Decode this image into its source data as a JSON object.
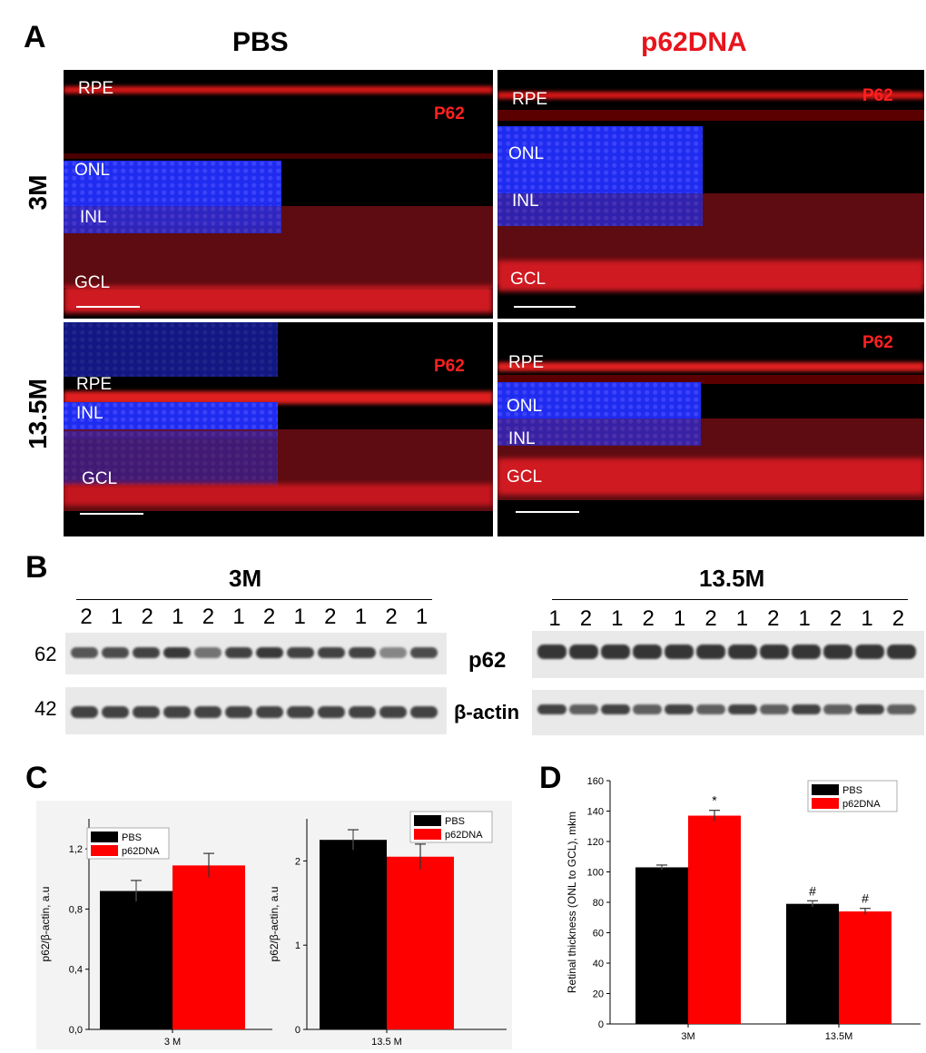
{
  "panels": {
    "a": "A",
    "b": "B",
    "c": "C",
    "d": "D"
  },
  "panel_a": {
    "col_pbs": "PBS",
    "col_p62dna": "p62DNA",
    "row_3m": "3M",
    "row_13m": "13.5M",
    "colors": {
      "pbs": "#000000",
      "p62dna": "#e8141b"
    },
    "images": [
      {
        "labels": [
          "RPE",
          "ONL",
          "INL",
          "GCL"
        ],
        "stain": "P62"
      },
      {
        "labels": [
          "RPE",
          "ONL",
          "INL",
          "GCL"
        ],
        "stain": "P62"
      },
      {
        "labels": [
          "RPE",
          "INL",
          "GCL"
        ],
        "stain": "P62"
      },
      {
        "labels": [
          "RPE",
          "ONL",
          "INL",
          "GCL"
        ],
        "stain": "P62"
      }
    ]
  },
  "panel_b": {
    "group_3m": "3M",
    "group_13m": "13.5M",
    "lanes_3m": [
      "2",
      "1",
      "2",
      "1",
      "2",
      "1",
      "2",
      "1",
      "2",
      "1",
      "2",
      "1"
    ],
    "lanes_13m": [
      "1",
      "2",
      "1",
      "2",
      "1",
      "2",
      "1",
      "2",
      "1",
      "2",
      "1",
      "2"
    ],
    "mw_62": "62",
    "mw_42": "42",
    "label_p62": "p62",
    "label_actin": "β-actin"
  },
  "chart_data": [
    {
      "type": "bar",
      "panel": "C",
      "categories": [
        "3 M"
      ],
      "series": [
        {
          "name": "PBS",
          "values": [
            0.92
          ],
          "errors": [
            0.07
          ],
          "color": "#000000"
        },
        {
          "name": "p62DNA",
          "values": [
            1.09
          ],
          "errors": [
            0.08
          ],
          "color": "#ff0000"
        }
      ],
      "ylabel": "p62/β-actin, a.u",
      "ylim": [
        0,
        1.4
      ],
      "yticks": [
        "0,0",
        "0,4",
        "0,8",
        "1,2"
      ],
      "legend": "top-left"
    },
    {
      "type": "bar",
      "panel": "C",
      "categories": [
        "13.5 M"
      ],
      "series": [
        {
          "name": "PBS",
          "values": [
            2.25
          ],
          "errors": [
            0.12
          ],
          "color": "#000000"
        },
        {
          "name": "p62DNA",
          "values": [
            2.05
          ],
          "errors": [
            0.15
          ],
          "color": "#ff0000"
        }
      ],
      "ylabel": "p62/β-actin, a.u",
      "ylim": [
        0,
        2.5
      ],
      "yticks": [
        "0",
        "1",
        "2"
      ],
      "legend": "top-right"
    },
    {
      "type": "bar",
      "panel": "D",
      "categories": [
        "3M",
        "13.5M"
      ],
      "series": [
        {
          "name": "PBS",
          "values": [
            103,
            79
          ],
          "errors": [
            1.5,
            2
          ],
          "color": "#000000"
        },
        {
          "name": "p62DNA",
          "values": [
            137,
            74
          ],
          "errors": [
            3.5,
            2
          ],
          "color": "#ff0000"
        }
      ],
      "annotations": [
        {
          "category": 0,
          "series": 1,
          "text": "*"
        },
        {
          "category": 1,
          "series": 0,
          "text": "#"
        },
        {
          "category": 1,
          "series": 1,
          "text": "#"
        }
      ],
      "ylabel": "Retinal thickness (ONL to GCL), mkm",
      "ylim": [
        0,
        160
      ],
      "yticks": [
        "0",
        "20",
        "40",
        "60",
        "80",
        "100",
        "120",
        "140",
        "160"
      ],
      "legend": "top-right"
    }
  ]
}
